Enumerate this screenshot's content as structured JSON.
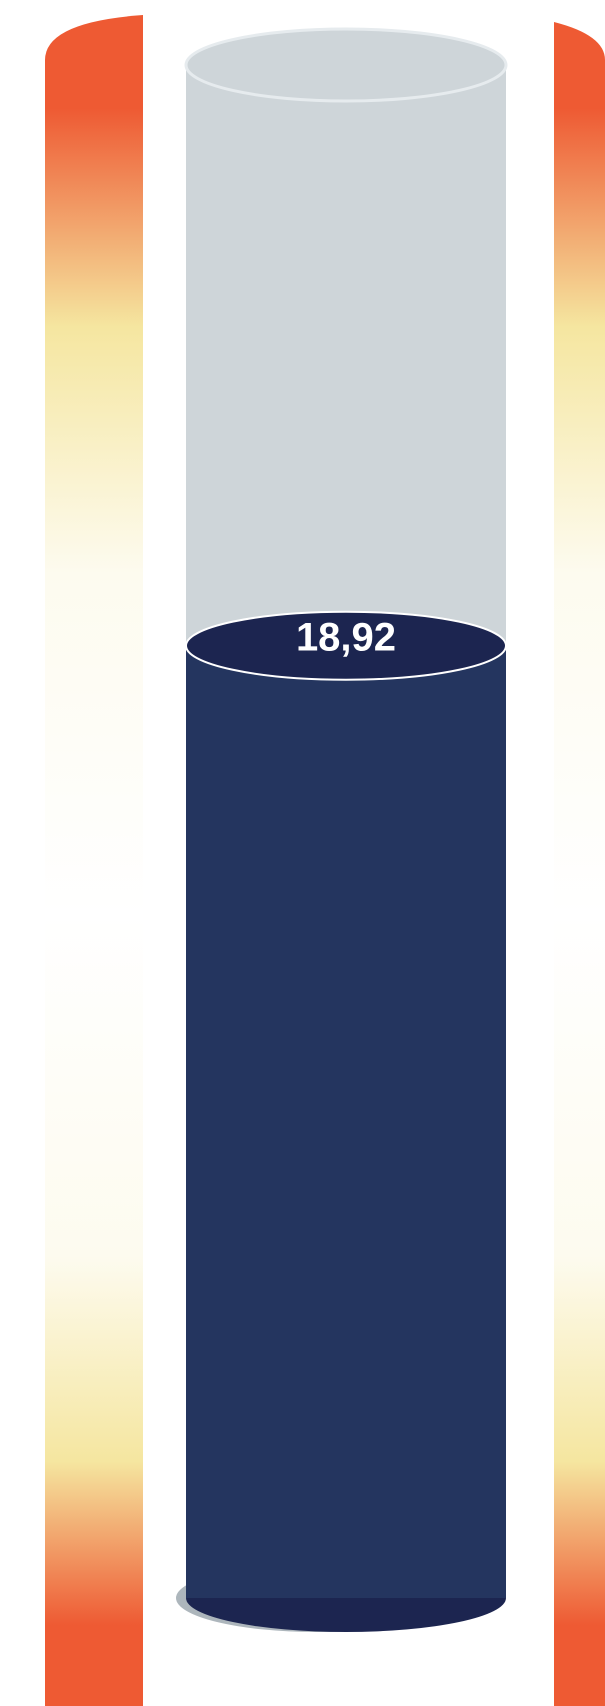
{
  "chart_data": {
    "type": "gauge",
    "value": 18.92,
    "value_label": "18,92",
    "scale": [
      0,
      30
    ],
    "bands": [
      {
        "from": 0,
        "to": 2,
        "color": "#ee5a33"
      },
      {
        "from": 2,
        "to": 6,
        "color": "#f5e6a0"
      },
      {
        "from": 6,
        "to": 9.5,
        "color": "#fdfbef"
      },
      {
        "from": 9.5,
        "to": 18.5,
        "color": "#ffffff"
      },
      {
        "from": 18.5,
        "to": 22,
        "color": "#fdfbef"
      },
      {
        "from": 22,
        "to": 27.5,
        "color": "#f5e6a0"
      },
      {
        "from": 27.5,
        "to": 30,
        "color": "#ee5a33"
      }
    ]
  },
  "colors": {
    "tube_empty": "#ced5d9",
    "liquid": "#24355f",
    "liquid_surface": "#1c2550",
    "label": "#ffffff"
  }
}
